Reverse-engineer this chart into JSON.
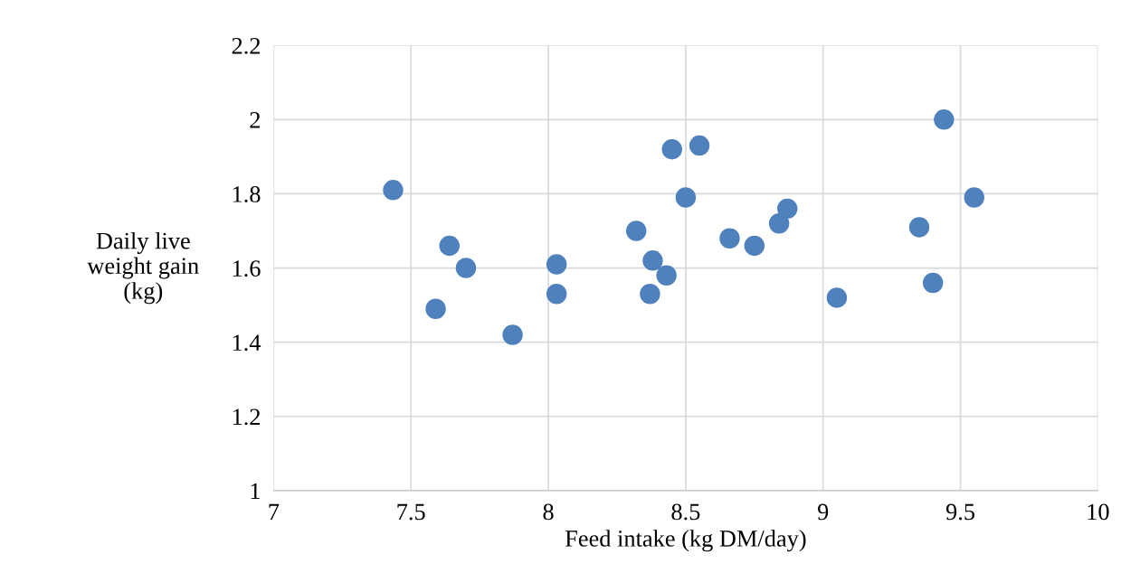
{
  "chart_data": {
    "type": "scatter",
    "xlabel": "Feed intake (kg DM/day)",
    "ylabel": "Daily live\nweight gain\n(kg)",
    "series": [
      {
        "color": "#4f81bd",
        "x": [
          7.435,
          7.64,
          7.59,
          7.7,
          7.87,
          8.03,
          8.03,
          8.32,
          8.38,
          8.37,
          8.43,
          8.45,
          8.55,
          8.5,
          8.66,
          8.75,
          8.84,
          8.87,
          9.05,
          9.35,
          9.4,
          9.44,
          9.55
        ],
        "values": [
          1.81,
          1.66,
          1.49,
          1.6,
          1.42,
          1.61,
          1.53,
          1.7,
          1.62,
          1.53,
          1.58,
          1.92,
          1.93,
          1.79,
          1.68,
          1.66,
          1.72,
          1.76,
          1.52,
          1.71,
          1.56,
          2.0,
          1.79
        ]
      }
    ],
    "xlim": [
      7,
      10
    ],
    "xticks": [
      7,
      7.5,
      8,
      8.5,
      9,
      9.5,
      10
    ],
    "ylim": [
      1,
      2.2
    ],
    "yticks": [
      1,
      1.2,
      1.4,
      1.6,
      1.8,
      2,
      2.2
    ],
    "grid": true,
    "marker": "circle"
  }
}
